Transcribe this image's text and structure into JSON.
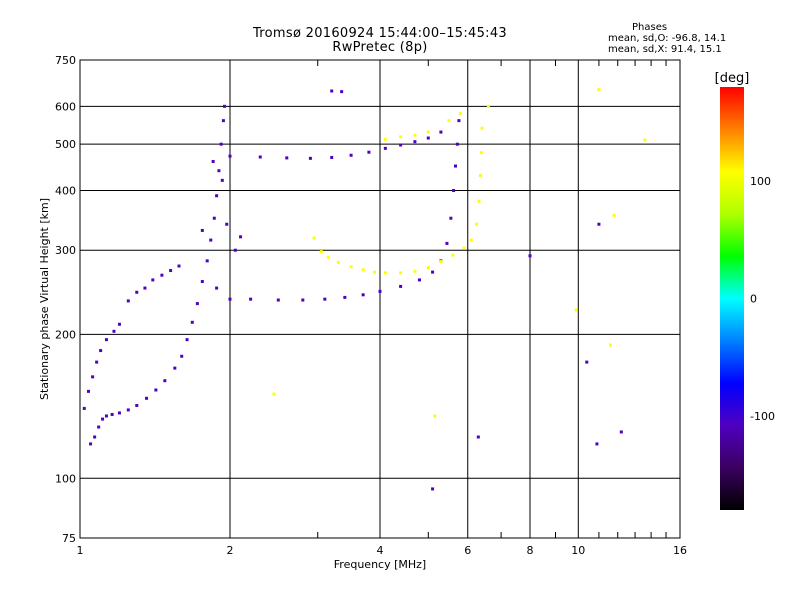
{
  "header": {
    "title": "Tromsø 20160924 15:44:00–15:45:43",
    "subtitle": "RwPretec (8p)"
  },
  "stats": {
    "heading": "Phases",
    "o_mode": "mean, sd,O: -96.8, 14.1",
    "x_mode": "mean, sd,X:  91.4, 15.1"
  },
  "chart_data": {
    "type": "scatter",
    "xlabel": "Frequency [MHz]",
    "ylabel": "Stationary phase Virtual Height [km]",
    "xscale": "log",
    "yscale": "log",
    "xlim": [
      1,
      16
    ],
    "ylim": [
      75,
      750
    ],
    "xticks": [
      {
        "value": 1,
        "label": "1"
      },
      {
        "value": 2,
        "label": "2"
      },
      {
        "value": 4,
        "label": "4"
      },
      {
        "value": 6,
        "label": "6"
      },
      {
        "value": 8,
        "label": "8"
      },
      {
        "value": 10,
        "label": "10"
      },
      {
        "value": 16,
        "label": "16"
      }
    ],
    "yticks": [
      {
        "value": 75,
        "label": "75"
      },
      {
        "value": 100,
        "label": "100"
      },
      {
        "value": 200,
        "label": "200"
      },
      {
        "value": 300,
        "label": "300"
      },
      {
        "value": 400,
        "label": "400"
      },
      {
        "value": 500,
        "label": "500"
      },
      {
        "value": 600,
        "label": "600"
      },
      {
        "value": 750,
        "label": "750"
      }
    ],
    "grid": true,
    "colorbar": {
      "label": "[deg]",
      "range": [
        -180,
        180
      ],
      "ticks": [
        {
          "value": 100,
          "label": "100"
        },
        {
          "value": 0,
          "label": "0"
        },
        {
          "value": -100,
          "label": "-100"
        }
      ],
      "stops": [
        "#000000",
        "#3a0060",
        "#5000c0",
        "#0000ff",
        "#0080ff",
        "#00ffff",
        "#00ff00",
        "#b0ff00",
        "#ffff00",
        "#ff8000",
        "#ff0000"
      ]
    },
    "series": [
      {
        "mode": "O",
        "color_phase": -100,
        "points": [
          [
            1.05,
            118
          ],
          [
            1.07,
            122
          ],
          [
            1.09,
            128
          ],
          [
            1.11,
            133
          ],
          [
            1.13,
            135
          ],
          [
            1.16,
            136
          ],
          [
            1.2,
            137
          ],
          [
            1.25,
            139
          ],
          [
            1.3,
            142
          ],
          [
            1.36,
            147
          ],
          [
            1.42,
            153
          ],
          [
            1.48,
            160
          ],
          [
            1.55,
            170
          ],
          [
            1.6,
            180
          ],
          [
            1.64,
            195
          ],
          [
            1.68,
            212
          ],
          [
            1.72,
            232
          ],
          [
            1.76,
            258
          ],
          [
            1.8,
            285
          ],
          [
            1.83,
            315
          ],
          [
            1.86,
            350
          ],
          [
            1.88,
            390
          ],
          [
            1.9,
            440
          ],
          [
            1.92,
            500
          ],
          [
            1.94,
            560
          ],
          [
            1.95,
            600
          ],
          [
            1.02,
            140
          ],
          [
            1.04,
            152
          ],
          [
            1.06,
            163
          ],
          [
            1.08,
            175
          ],
          [
            1.1,
            185
          ],
          [
            1.13,
            195
          ],
          [
            1.17,
            203
          ],
          [
            1.2,
            210
          ],
          [
            1.25,
            235
          ],
          [
            1.3,
            245
          ],
          [
            1.35,
            250
          ],
          [
            1.4,
            260
          ],
          [
            1.46,
            266
          ],
          [
            1.52,
            272
          ],
          [
            1.58,
            278
          ],
          [
            2.0,
            237
          ],
          [
            2.2,
            237
          ],
          [
            2.5,
            236
          ],
          [
            2.8,
            236
          ],
          [
            3.1,
            237
          ],
          [
            3.4,
            239
          ],
          [
            3.7,
            242
          ],
          [
            4.0,
            246
          ],
          [
            4.4,
            252
          ],
          [
            4.8,
            260
          ],
          [
            5.1,
            270
          ],
          [
            5.3,
            285
          ],
          [
            5.45,
            310
          ],
          [
            5.55,
            350
          ],
          [
            5.62,
            400
          ],
          [
            5.67,
            450
          ],
          [
            5.72,
            500
          ],
          [
            5.76,
            560
          ],
          [
            2.0,
            472
          ],
          [
            2.3,
            470
          ],
          [
            2.6,
            468
          ],
          [
            2.9,
            467
          ],
          [
            3.2,
            469
          ],
          [
            3.5,
            474
          ],
          [
            3.8,
            481
          ],
          [
            4.1,
            490
          ],
          [
            4.4,
            498
          ],
          [
            4.7,
            506
          ],
          [
            5.0,
            515
          ],
          [
            5.3,
            530
          ],
          [
            3.2,
            646
          ],
          [
            3.35,
            644
          ],
          [
            2.05,
            300
          ],
          [
            2.1,
            320
          ],
          [
            1.85,
            460
          ],
          [
            1.88,
            250
          ],
          [
            1.93,
            420
          ],
          [
            1.97,
            340
          ],
          [
            1.76,
            330
          ]
        ]
      },
      {
        "mode": "X",
        "color_phase": 95,
        "points": [
          [
            2.95,
            318
          ],
          [
            3.05,
            298
          ],
          [
            3.15,
            290
          ],
          [
            3.3,
            283
          ],
          [
            3.5,
            277
          ],
          [
            3.7,
            273
          ],
          [
            3.9,
            270
          ],
          [
            4.1,
            269
          ],
          [
            4.4,
            269
          ],
          [
            4.7,
            271
          ],
          [
            5.0,
            276
          ],
          [
            5.3,
            284
          ],
          [
            5.6,
            293
          ],
          [
            5.9,
            303
          ],
          [
            6.1,
            315
          ],
          [
            6.25,
            340
          ],
          [
            6.32,
            380
          ],
          [
            6.36,
            430
          ],
          [
            6.39,
            480
          ],
          [
            6.41,
            540
          ],
          [
            4.1,
            512
          ],
          [
            4.4,
            518
          ],
          [
            4.7,
            522
          ],
          [
            5.0,
            530
          ],
          [
            5.5,
            560
          ],
          [
            5.8,
            580
          ],
          [
            2.45,
            150
          ],
          [
            5.15,
            135
          ],
          [
            6.6,
            600
          ],
          [
            11.0,
            650
          ],
          [
            11.8,
            355
          ],
          [
            13.6,
            510
          ],
          [
            11.6,
            190
          ],
          [
            9.9,
            225
          ]
        ]
      },
      {
        "mode": "noise",
        "color_phase": -110,
        "points": [
          [
            5.1,
            95
          ],
          [
            6.3,
            122
          ],
          [
            8.0,
            292
          ],
          [
            10.4,
            175
          ],
          [
            10.9,
            118
          ],
          [
            12.2,
            125
          ],
          [
            11.0,
            340
          ]
        ]
      }
    ]
  }
}
